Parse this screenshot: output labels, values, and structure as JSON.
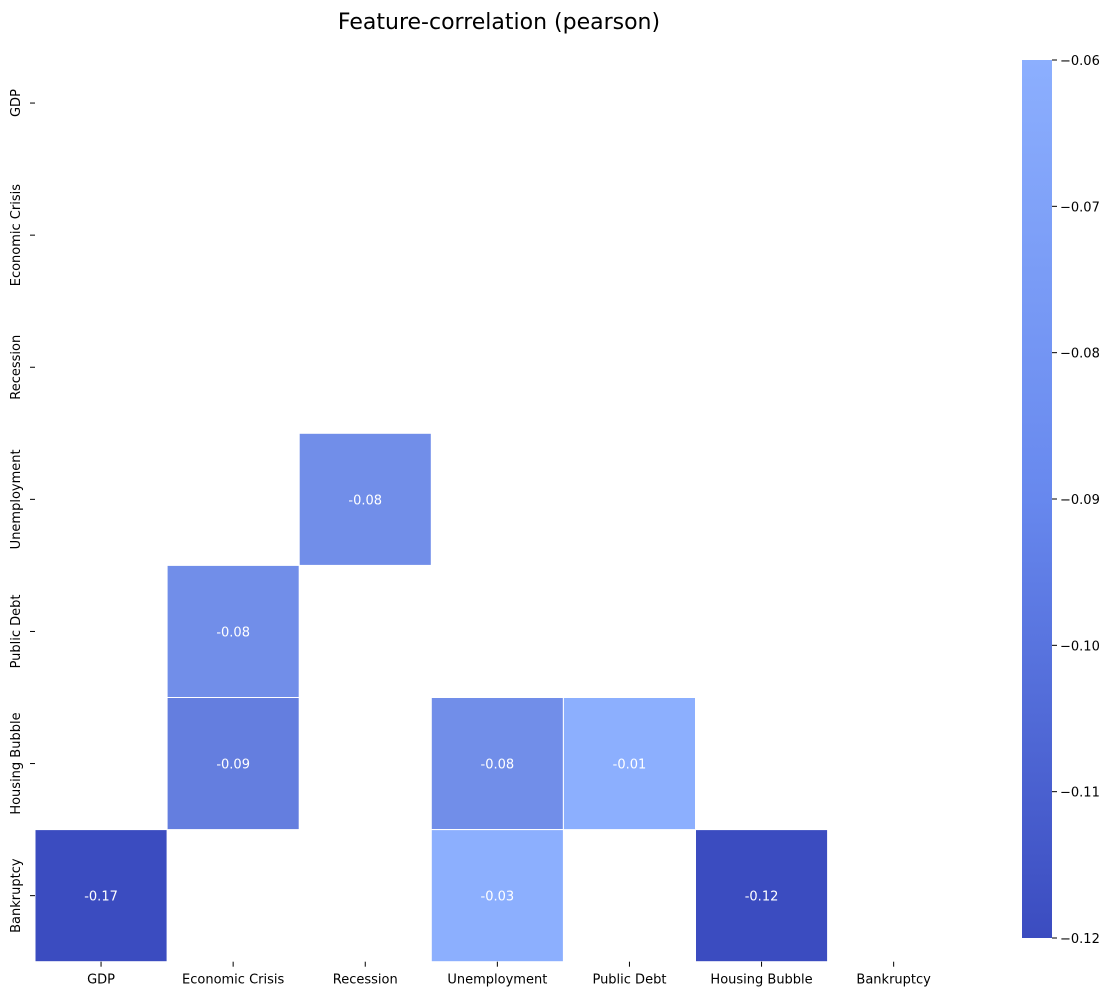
{
  "chart_data": {
    "type": "heatmap",
    "title": "Feature-correlation (pearson)",
    "x_labels": [
      "GDP",
      "Economic Crisis",
      "Recession",
      "Unemployment",
      "Public Debt",
      "Housing Bubble",
      "Bankruptcy"
    ],
    "y_labels": [
      "GDP",
      "Economic Crisis",
      "Recession",
      "Unemployment",
      "Public Debt",
      "Housing Bubble",
      "Bankruptcy"
    ],
    "cells": [
      {
        "row": 3,
        "col": 2,
        "value": -0.08,
        "label": "-0.08"
      },
      {
        "row": 4,
        "col": 1,
        "value": -0.08,
        "label": "-0.08"
      },
      {
        "row": 5,
        "col": 1,
        "value": -0.09,
        "label": "-0.09"
      },
      {
        "row": 5,
        "col": 3,
        "value": -0.08,
        "label": "-0.08"
      },
      {
        "row": 5,
        "col": 4,
        "value": -0.01,
        "label": "-0.01"
      },
      {
        "row": 6,
        "col": 0,
        "value": -0.17,
        "label": "-0.17"
      },
      {
        "row": 6,
        "col": 3,
        "value": -0.03,
        "label": "-0.03"
      },
      {
        "row": 6,
        "col": 5,
        "value": -0.12,
        "label": "-0.12"
      }
    ],
    "vmin": -0.12,
    "vmax": -0.06,
    "colorbar_ticks": [
      -0.06,
      -0.07,
      -0.08,
      -0.09,
      -0.1,
      -0.11,
      -0.12
    ],
    "colorbar_tick_labels": [
      "−0.06",
      "−0.07",
      "−0.08",
      "−0.09",
      "−0.10",
      "−0.11",
      "−0.12"
    ],
    "colormap": {
      "low_color": "#3b4cc0",
      "high_color": "#8caffe"
    },
    "legend_position": "right"
  }
}
